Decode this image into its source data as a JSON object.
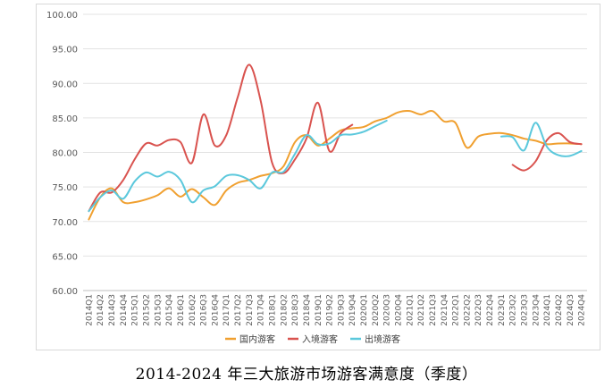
{
  "caption": "2014-2024 年三大旅游市场游客满意度（季度）",
  "chart_data": {
    "type": "line",
    "title": "",
    "xlabel": "",
    "ylabel": "",
    "ylim": [
      60,
      100
    ],
    "yticks": [
      "60.00",
      "65.00",
      "70.00",
      "75.00",
      "80.00",
      "85.00",
      "90.00",
      "95.00",
      "100.00"
    ],
    "grid": "horizontal",
    "legend_position": "bottom",
    "categories": [
      "2014Q1",
      "2014Q2",
      "2014Q3",
      "2014Q4",
      "2015Q1",
      "2015Q2",
      "2015Q3",
      "2015Q4",
      "2016Q1",
      "2016Q2",
      "2016Q3",
      "2016Q4",
      "2017Q1",
      "2017Q2",
      "2017Q3",
      "2017Q4",
      "2018Q1",
      "2018Q2",
      "2018Q3",
      "2018Q4",
      "2019Q1",
      "2019Q2",
      "2019Q3",
      "2019Q4",
      "2020Q1",
      "2020Q2",
      "2020Q3",
      "2020Q4",
      "2021Q1",
      "2021Q2",
      "2021Q3",
      "2021Q4",
      "2022Q1",
      "2022Q2",
      "2022Q3",
      "2022Q4",
      "2023Q1",
      "2023Q2",
      "2023Q3",
      "2023Q4",
      "2024Q1",
      "2024Q2",
      "2024Q3",
      "2024Q4"
    ],
    "series": [
      {
        "name": "国内游客",
        "color": "#f0a030",
        "values": [
          70.3,
          73.5,
          74.8,
          72.8,
          72.8,
          73.2,
          73.8,
          74.8,
          73.6,
          74.7,
          73.5,
          72.4,
          74.5,
          75.6,
          76.0,
          76.6,
          77.0,
          78.0,
          81.5,
          82.5,
          81.0,
          82.0,
          83.2,
          83.5,
          83.7,
          84.5,
          85.0,
          85.8,
          86.0,
          85.5,
          86.0,
          84.5,
          84.3,
          80.7,
          82.3,
          82.7,
          82.8,
          82.5,
          82.0,
          81.7,
          81.2,
          81.3,
          81.3,
          81.2
        ]
      },
      {
        "name": "入境游客",
        "color": "#d9534f",
        "values": [
          71.5,
          74.2,
          74.2,
          76.0,
          79.0,
          81.3,
          81.0,
          81.8,
          81.5,
          78.5,
          85.5,
          81.0,
          82.5,
          88.0,
          92.7,
          87.5,
          78.5,
          77.0,
          79.0,
          82.0,
          87.2,
          80.2,
          82.8,
          84.0,
          null,
          null,
          null,
          null,
          null,
          null,
          null,
          null,
          null,
          null,
          null,
          null,
          null,
          78.2,
          77.4,
          78.7,
          81.8,
          82.8,
          81.5,
          81.2
        ]
      },
      {
        "name": "出境游客",
        "color": "#5bc8dc",
        "values": [
          71.5,
          73.5,
          74.5,
          73.3,
          75.8,
          77.1,
          76.5,
          77.2,
          76.0,
          72.8,
          74.5,
          75.1,
          76.6,
          76.7,
          76.0,
          74.8,
          77.1,
          77.2,
          79.8,
          82.5,
          81.2,
          81.3,
          82.5,
          82.6,
          83.0,
          83.8,
          84.6,
          null,
          null,
          null,
          null,
          null,
          null,
          null,
          null,
          null,
          82.3,
          82.2,
          80.3,
          84.3,
          80.8,
          79.6,
          79.5,
          80.2
        ]
      }
    ]
  }
}
